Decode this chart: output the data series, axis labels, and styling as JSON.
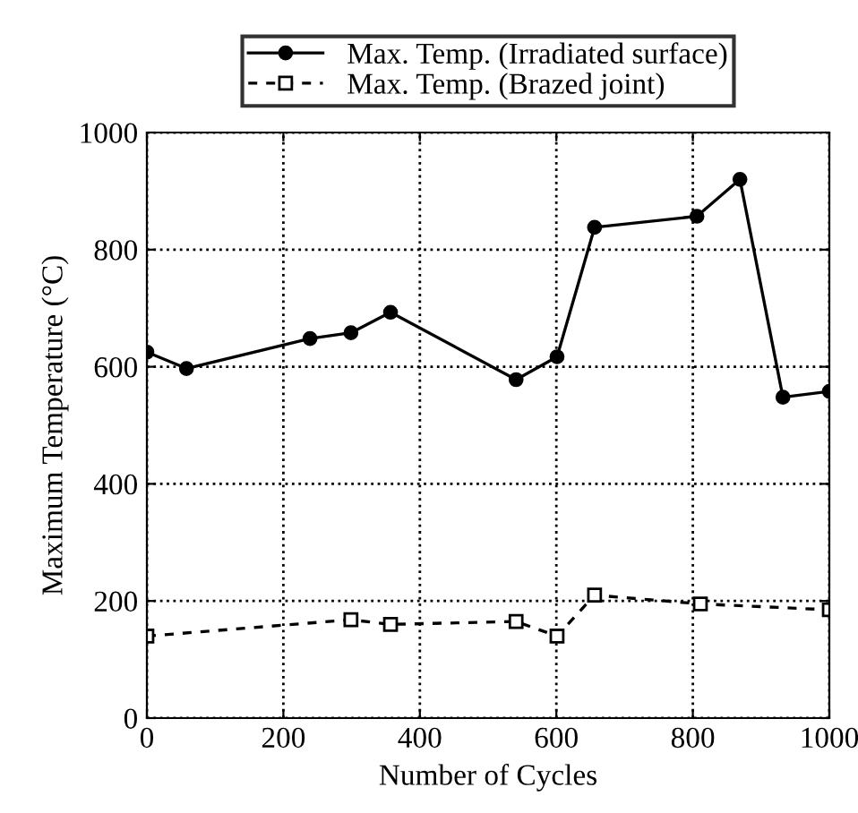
{
  "chart_data": {
    "type": "line",
    "xlabel": "Number of Cycles",
    "ylabel": "Maximum Temperature (°C)",
    "xlim": [
      0,
      1000
    ],
    "xticks": [
      0,
      200,
      400,
      600,
      800,
      1000
    ],
    "ylim": [
      0,
      1000
    ],
    "yticks": [
      0,
      200,
      400,
      600,
      800,
      1000
    ],
    "grid": true,
    "legend": "top",
    "series": [
      {
        "name": "Max. Temp. (Irradiated surface)",
        "color": "#000000",
        "marker": "circle",
        "line_style": "solid",
        "x": [
          0,
          58,
          239,
          299,
          357,
          541,
          601,
          656,
          806,
          869,
          932,
          1000
        ],
        "values": [
          625,
          597,
          648,
          658,
          693,
          578,
          617,
          838,
          857,
          920,
          548,
          558
        ]
      },
      {
        "name": "Max. Temp. (Brazed joint)",
        "color": "#000000",
        "marker": "square",
        "line_style": "dashed",
        "x": [
          0,
          299,
          357,
          541,
          601,
          656,
          811,
          1000
        ],
        "values": [
          140,
          168,
          160,
          165,
          140,
          210,
          195,
          185
        ]
      }
    ]
  }
}
